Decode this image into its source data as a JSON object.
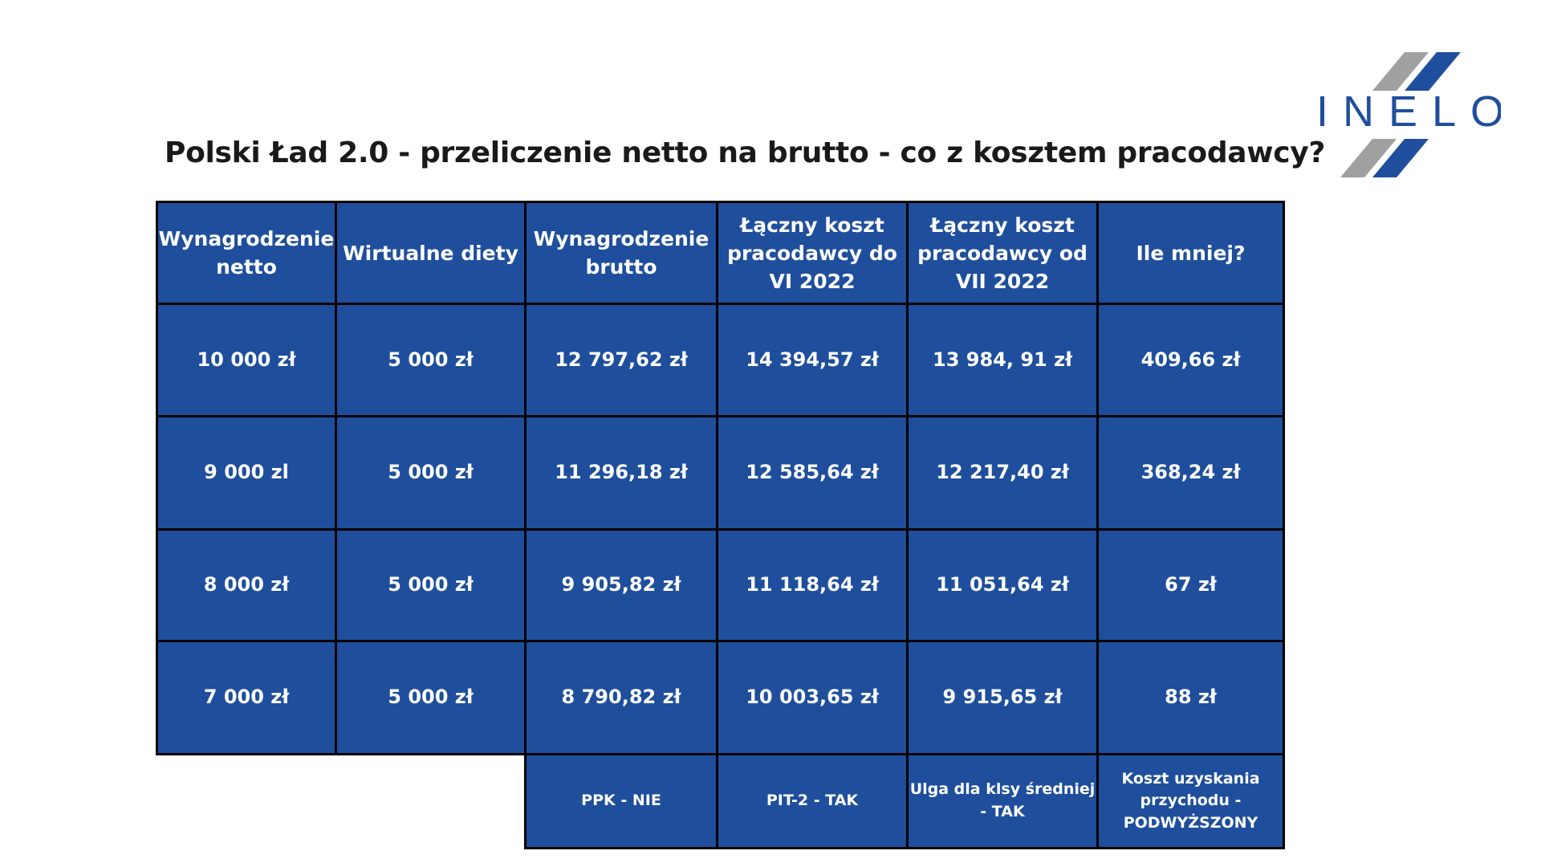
{
  "title": "Polski Ład 2.0 - przeliczenie netto na brutto - co z kosztem pracodawcy?",
  "logo": {
    "text": "INELO",
    "colors": {
      "blue": "#1f4e9c",
      "gray": "#a0a0a0"
    }
  },
  "colors": {
    "cell_bg": "#1f4e9c",
    "border": "#000000",
    "text": "#ffffff"
  },
  "table": {
    "headers": [
      "Wynagrodzenie netto",
      "Wirtualne diety",
      "Wynagrodzenie brutto",
      "Łączny koszt pracodawcy do VI 2022",
      "Łączny koszt pracodawcy od VII 2022",
      "Ile mniej?"
    ],
    "rows": [
      [
        "10 000 zł",
        "5 000 zł",
        "12 797,62 zł",
        "14 394,57 zł",
        "13 984, 91 zł",
        "409,66 zł"
      ],
      [
        "9 000 zl",
        "5 000 zł",
        "11 296,18 zł",
        "12 585,64 zł",
        "12 217,40 zł",
        "368,24 zł"
      ],
      [
        "8 000 zł",
        "5 000 zł",
        "9 905,82 zł",
        "11 118,64 zł",
        "11 051,64 zł",
        "67 zł"
      ],
      [
        "7 000 zł",
        "5 000 zł",
        "8 790,82 zł",
        "10 003,65 zł",
        "9 915,65 zł",
        "88 zł"
      ]
    ],
    "footnotes": [
      "PPK  - NIE",
      "PIT-2 - TAK",
      "Ulga dla klsy średniej - TAK",
      "Koszt uzyskania przychodu - PODWYŻSZONY"
    ]
  }
}
